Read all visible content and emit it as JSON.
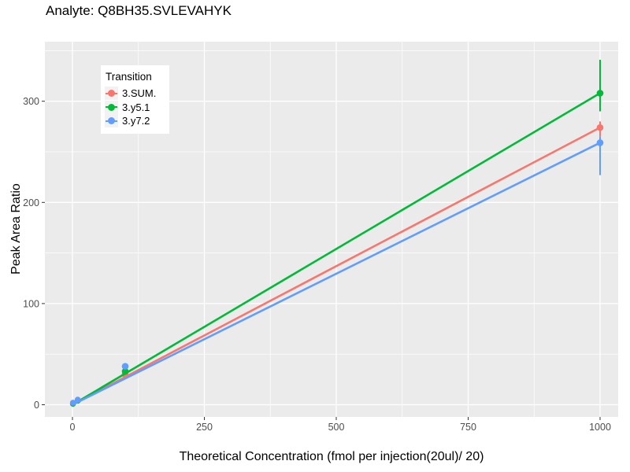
{
  "chart_data": {
    "type": "line",
    "title": "Analyte: Q8BH35.SVLEVAHYK",
    "xlabel": "Theoretical Concentration (fmol per injection(20ul)/ 20)",
    "ylabel": "Peak Area Ratio",
    "x_ticks": [
      0,
      250,
      500,
      750,
      1000
    ],
    "y_ticks": [
      0,
      100,
      200,
      300
    ],
    "x_minor_ticks": [
      125,
      375,
      625,
      875
    ],
    "y_minor_ticks": [
      50,
      150,
      250,
      350
    ],
    "xlim": [
      -52,
      1034
    ],
    "ylim": [
      -11,
      359
    ],
    "grid": true,
    "panel_background": "#EBEBEB",
    "gridline_color": "#FFFFFF",
    "tick_color": "#333333",
    "tick_label_color": "#4D4D4D",
    "legend": {
      "title": "Transition",
      "position": "top-left-inside"
    },
    "series": [
      {
        "name": "3.SUM.",
        "color": "#F8766D",
        "points": [
          {
            "x": 1,
            "y": 1
          },
          {
            "x": 10,
            "y": 4
          },
          {
            "x": 100,
            "y": 30
          },
          {
            "x": 1000,
            "y": 274
          }
        ],
        "fit_line": {
          "x1": 0,
          "y1": 0,
          "x2": 1000,
          "y2": 274
        },
        "error_bars": [
          {
            "x": 1000,
            "low": 265,
            "high": 280
          }
        ]
      },
      {
        "name": "3.y5.1",
        "color": "#00BA38",
        "points": [
          {
            "x": 1,
            "y": 1
          },
          {
            "x": 10,
            "y": 4
          },
          {
            "x": 100,
            "y": 33
          },
          {
            "x": 1000,
            "y": 308
          }
        ],
        "fit_line": {
          "x1": 0,
          "y1": 0,
          "x2": 1000,
          "y2": 308
        },
        "error_bars": [
          {
            "x": 1000,
            "low": 290,
            "high": 341
          }
        ]
      },
      {
        "name": "3.y7.2",
        "color": "#619CFF",
        "points": [
          {
            "x": 1,
            "y": 2
          },
          {
            "x": 10,
            "y": 5
          },
          {
            "x": 100,
            "y": 38
          },
          {
            "x": 1000,
            "y": 259
          }
        ],
        "fit_line": {
          "x1": 0,
          "y1": 0,
          "x2": 1000,
          "y2": 259
        },
        "error_bars": [
          {
            "x": 1000,
            "low": 227,
            "high": 265
          }
        ]
      }
    ]
  }
}
